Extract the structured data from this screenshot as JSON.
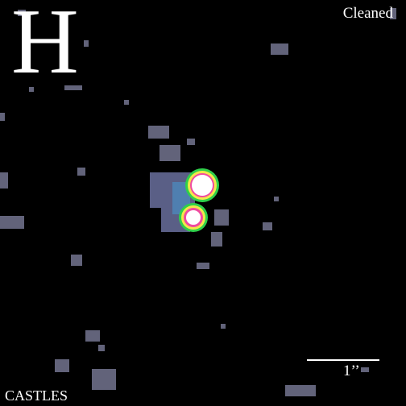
{
  "band": "H",
  "mode": "Cleaned",
  "scale": "1’’",
  "survey": "CASTLES",
  "colors": {
    "background": "#000000",
    "noise": "#62637a",
    "host": "#5a5f86",
    "ring_outer": "#2fd04a",
    "ring_mid": "#f2e84a",
    "ring_inner": "#f04aa0",
    "core": "#ffffff"
  }
}
